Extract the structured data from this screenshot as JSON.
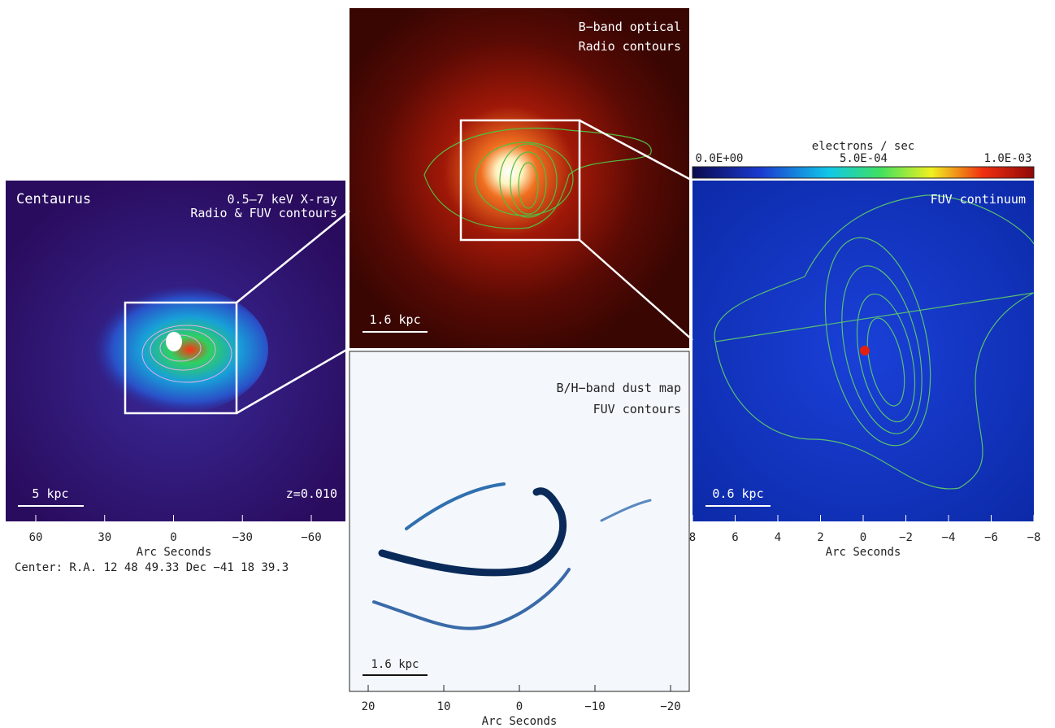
{
  "panels": {
    "xray": {
      "name": "Centaurus",
      "title_lines": [
        "0.5–7 keV X-ray",
        "Radio & FUV contours"
      ],
      "scale_bar": "5 kpc",
      "redshift": "z=0.010",
      "x_ticks": [
        "60",
        "30",
        "0",
        "−30",
        "−60"
      ],
      "x_label": "Arc Seconds",
      "center": "Center:  R.A. 12 48 49.33    Dec  −41 18 39.3"
    },
    "optical": {
      "title_lines": [
        "B−band optical",
        "Radio contours"
      ],
      "scale_bar": "1.6 kpc"
    },
    "dust": {
      "title_lines": [
        "B/H−band dust map",
        "FUV contours"
      ],
      "scale_bar": "1.6 kpc",
      "x_ticks": [
        "20",
        "10",
        "0",
        "−10",
        "−20"
      ],
      "x_label": "Arc Seconds"
    },
    "fuv": {
      "title_lines": [
        "FUV continuum"
      ],
      "scale_bar": "0.6 kpc",
      "colorbar_label": "electrons / sec",
      "colorbar_ticks": [
        "0.0E+00",
        "5.0E-04",
        "1.0E-03"
      ],
      "x_ticks": [
        "8",
        "6",
        "4",
        "2",
        "0",
        "−2",
        "−4",
        "−6",
        "−8"
      ],
      "x_label": "Arc Seconds"
    }
  }
}
